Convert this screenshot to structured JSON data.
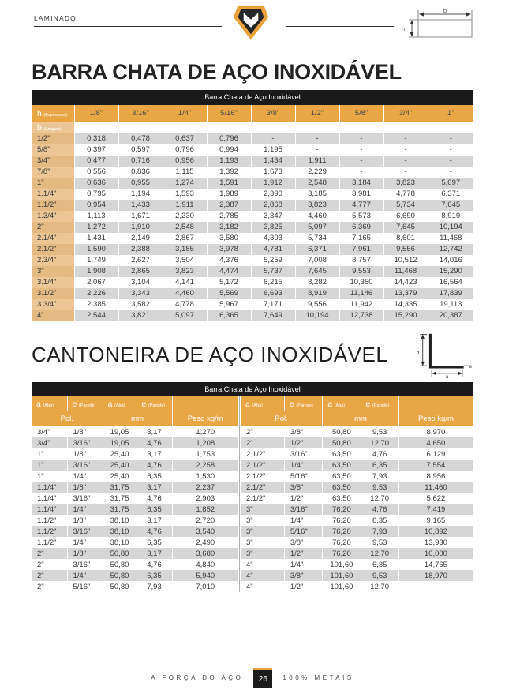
{
  "page": {
    "tag": "LAMINADO",
    "footer": {
      "left": "A FORÇA DO AÇO",
      "page_number": "26",
      "right": "100% METAIS"
    }
  },
  "colors": {
    "gold": "#e9a645",
    "tan_label": "#ecc795",
    "tan_label_alt": "#e2ba82",
    "stripe_gray": "#d6d6d6",
    "band_black": "#1a1a1a"
  },
  "icons": {
    "logo": "shield-m-logo",
    "flat_bar_diagram": "flat-bar-dimension-diagram",
    "angle_diagram": "angle-dimension-diagram"
  },
  "diagrams": {
    "flat_bar": {
      "width_label": "b",
      "height_label": "h"
    },
    "angle": {
      "leg_label": "a",
      "thickness_label": "e"
    }
  },
  "section1": {
    "title": "BARRA CHATA DE AÇO INOXIDÁVEL",
    "table": {
      "caption": "Barra Chata de Aço Inoxidável",
      "corner_main": "h",
      "corner_sub": "(Espessura)",
      "brow_main": "b",
      "brow_sub": "(Largura)",
      "columns": [
        "1/8\"",
        "3/16\"",
        "1/4\"",
        "5/16\"",
        "3/8\"",
        "1/2\"",
        "5/8\"",
        "3/4\"",
        "1\""
      ],
      "rows": [
        {
          "label": "1/2\"",
          "values": [
            "0,318",
            "0,478",
            "0,637",
            "0,796",
            "-",
            "-",
            "-",
            "-",
            "-"
          ]
        },
        {
          "label": "5/8\"",
          "values": [
            "0,397",
            "0,597",
            "0,796",
            "0,994",
            "1,195",
            "-",
            "-",
            "-",
            "-"
          ]
        },
        {
          "label": "3/4\"",
          "values": [
            "0,477",
            "0,716",
            "0,956",
            "1,193",
            "1,434",
            "1,911",
            "-",
            "-",
            "-"
          ]
        },
        {
          "label": "7/8\"",
          "values": [
            "0,556",
            "0,836",
            "1,115",
            "1,392",
            "1,673",
            "2,229",
            "-",
            "-",
            "-"
          ]
        },
        {
          "label": "1\"",
          "values": [
            "0,636",
            "0,955",
            "1,274",
            "1,591",
            "1,912",
            "2,548",
            "3,184",
            "3,823",
            "5,097"
          ]
        },
        {
          "label": "1.1/4\"",
          "values": [
            "0,795",
            "1,194",
            "1,593",
            "1,989",
            "2,390",
            "3,185",
            "3,981",
            "4,778",
            "6,371"
          ]
        },
        {
          "label": "1.1/2\"",
          "values": [
            "0,954",
            "1,433",
            "1,911",
            "2,387",
            "2,868",
            "3,823",
            "4,777",
            "5,734",
            "7,645"
          ]
        },
        {
          "label": "1.3/4\"",
          "values": [
            "1,113",
            "1,671",
            "2,230",
            "2,785",
            "3,347",
            "4,460",
            "5,573",
            "6,690",
            "8,919"
          ]
        },
        {
          "label": "2\"",
          "values": [
            "1,272",
            "1,910",
            "2,548",
            "3,182",
            "3,825",
            "5,097",
            "6,369",
            "7,645",
            "10,194"
          ]
        },
        {
          "label": "2.1/4\"",
          "values": [
            "1,431",
            "2,149",
            "2,867",
            "3,580",
            "4,303",
            "5,734",
            "7,165",
            "8,601",
            "11,468"
          ]
        },
        {
          "label": "2.1/2\"",
          "values": [
            "1,590",
            "2,388",
            "3,185",
            "3,978",
            "4,781",
            "6,371",
            "7,961",
            "9,556",
            "12,742"
          ]
        },
        {
          "label": "2.3/4\"",
          "values": [
            "1,749",
            "2,627",
            "3,504",
            "4,376",
            "5,259",
            "7,008",
            "8,757",
            "10,512",
            "14,016"
          ]
        },
        {
          "label": "3\"",
          "values": [
            "1,908",
            "2,865",
            "3,823",
            "4,474",
            "5,737",
            "7,645",
            "9,553",
            "11,468",
            "15,290"
          ]
        },
        {
          "label": "3.1/4\"",
          "values": [
            "2,067",
            "3,104",
            "4,141",
            "5,172",
            "6,215",
            "8,282",
            "10,350",
            "14,423",
            "16,564"
          ]
        },
        {
          "label": "3.1/2\"",
          "values": [
            "2,226",
            "3,343",
            "4,460",
            "5,569",
            "6,693",
            "8,919",
            "11,146",
            "13,379",
            "17,839"
          ]
        },
        {
          "label": "3.3/4\"",
          "values": [
            "2,385",
            "3,582",
            "4,778",
            "5,967",
            "7,171",
            "9,556",
            "11,942",
            "14,335",
            "19,113"
          ]
        },
        {
          "label": "4\"",
          "values": [
            "2,544",
            "3,821",
            "5,097",
            "6,365",
            "7,649",
            "10,194",
            "12,738",
            "15,290",
            "20,387"
          ]
        }
      ]
    }
  },
  "section2": {
    "title": "CANTONEIRA DE AÇO INOXIDÁVEL",
    "table": {
      "caption": "Barra Chata de Aço Inoxidável",
      "h_a": "a",
      "h_a_sub": "(Aba)",
      "h_e": "e",
      "h_e_sub": "(Parede)",
      "unit_pol": "Pol.",
      "unit_mm": "mm",
      "unit_peso": "Peso kg/m",
      "left_rows": [
        [
          "3/4\"",
          "1/8\"",
          "19,05",
          "3,17",
          "1,270"
        ],
        [
          "3/4\"",
          "3/16\"",
          "19,05",
          "4,76",
          "1,208"
        ],
        [
          "1\"",
          "1/8\"",
          "25,40",
          "3,17",
          "1,753"
        ],
        [
          "1\"",
          "3/16\"",
          "25,40",
          "4,76",
          "2,258"
        ],
        [
          "1\"",
          "1/4\"",
          "25,40",
          "6,35",
          "1,530"
        ],
        [
          "1.1/4\"",
          "1/8\"",
          "31,75",
          "3,17",
          "2,237"
        ],
        [
          "1.1/4\"",
          "3/16\"",
          "31,75",
          "4,76",
          "2,903"
        ],
        [
          "1.1/4\"",
          "1/4\"",
          "31,75",
          "6,35",
          "1,852"
        ],
        [
          "1.1/2\"",
          "1/8\"",
          "38,10",
          "3,17",
          "2,720"
        ],
        [
          "1.1/2\"",
          "3/16\"",
          "38,10",
          "4,76",
          "3,540"
        ],
        [
          "1.1/2\"",
          "1/4\"",
          "38,10",
          "6,35",
          "2,490"
        ],
        [
          "2\"",
          "1/8\"",
          "50,80",
          "3,17",
          "3,680"
        ],
        [
          "2\"",
          "3/16\"",
          "50,80",
          "4,76",
          "4,840"
        ],
        [
          "2\"",
          "1/4\"",
          "50,80",
          "6,35",
          "5,940"
        ],
        [
          "2\"",
          "5/16\"",
          "50,80",
          "7,93",
          "7,010"
        ]
      ],
      "right_rows": [
        [
          "2\"",
          "3/8\"",
          "50,80",
          "9,53",
          "8,970"
        ],
        [
          "2\"",
          "1/2\"",
          "50,80",
          "12,70",
          "4,650"
        ],
        [
          "2.1/2\"",
          "3/16\"",
          "63,50",
          "4,76",
          "6,129"
        ],
        [
          "2.1/2\"",
          "1/4\"",
          "63,50",
          "6,35",
          "7,554"
        ],
        [
          "2.1/2\"",
          "5/16\"",
          "63,50",
          "7,93",
          "8,956"
        ],
        [
          "2.1/2\"",
          "3/8\"",
          "63,50",
          "9,53",
          "11,460"
        ],
        [
          "2.1/2\"",
          "1/2\"",
          "63,50",
          "12,70",
          "5,622"
        ],
        [
          "3\"",
          "3/16\"",
          "76,20",
          "4,76",
          "7,419"
        ],
        [
          "3\"",
          "1/4\"",
          "76,20",
          "6,35",
          "9,165"
        ],
        [
          "3\"",
          "5/16\"",
          "76,20",
          "7,93",
          "10,892"
        ],
        [
          "3\"",
          "3/8\"",
          "76,20",
          "9,53",
          "13,930"
        ],
        [
          "3\"",
          "1/2\"",
          "76,20",
          "12,70",
          "10,000"
        ],
        [
          "4\"",
          "1/4\"",
          "101,60",
          "6,35",
          "14,765"
        ],
        [
          "4\"",
          "3/8\"",
          "101,60",
          "9,53",
          "18,970"
        ],
        [
          "4\"",
          "1/2\"",
          "101,60",
          "12,70",
          ""
        ]
      ]
    }
  }
}
